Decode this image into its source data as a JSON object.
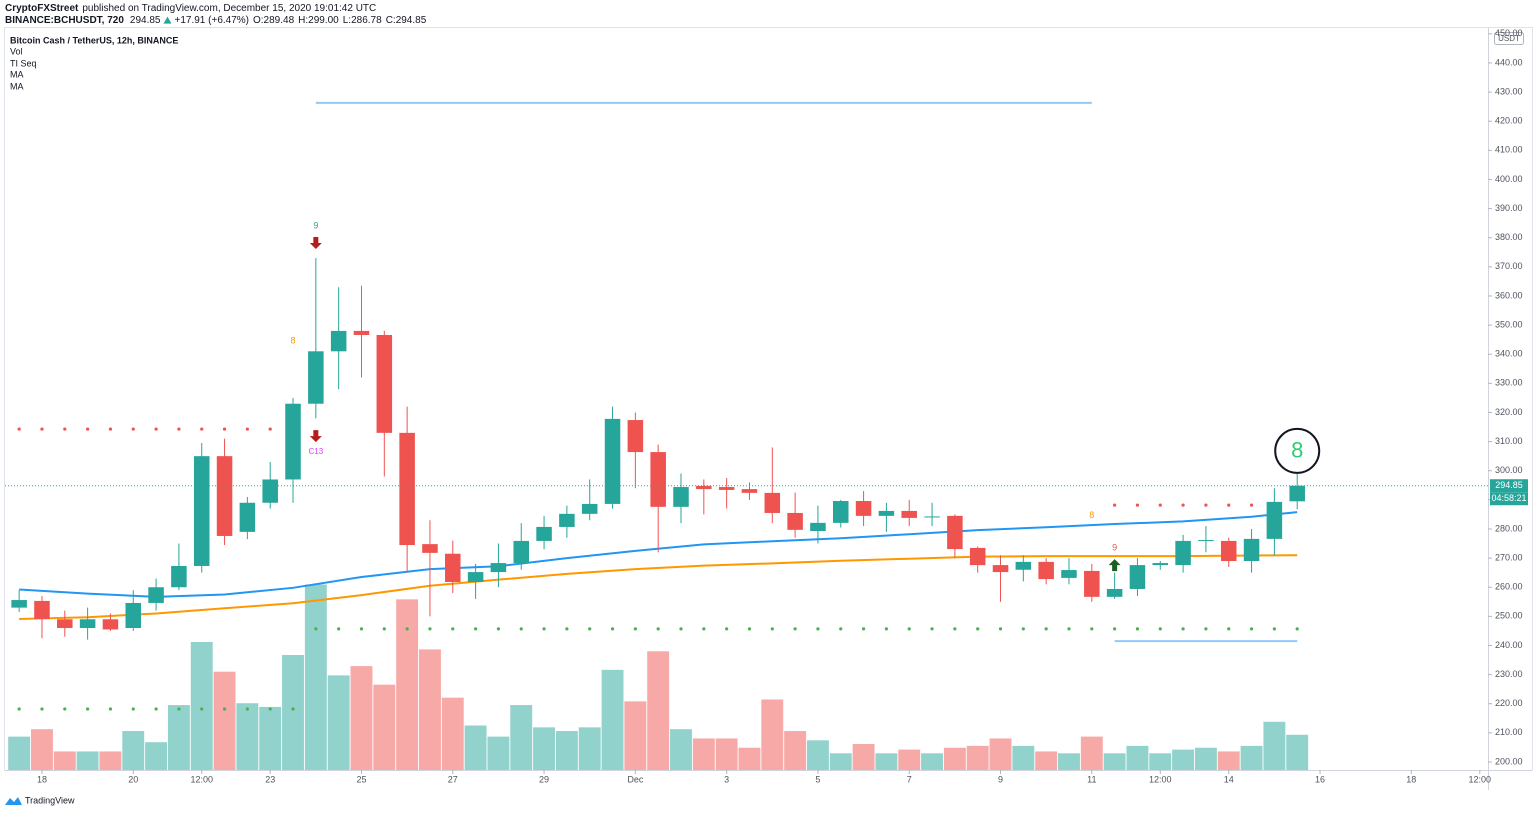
{
  "header": {
    "author": "CryptoFXStreet",
    "published": "published on TradingView.com, December 15, 2020 19:01:42 UTC",
    "symbol": "BINANCE:BCHUSDT, 720",
    "price": "294.85",
    "change": "+17.91 (+6.47%)",
    "ohlc": [
      "O:289.48",
      "H:299.00",
      "L:286.78",
      "C:294.85"
    ]
  },
  "footer": {
    "brand": "TradingView"
  },
  "chart_data": {
    "type": "candlestick",
    "title": "Bitcoin Cash / TetherUS, 12h, BINANCE",
    "legend": [
      "Vol",
      "TI Seq"
    ],
    "y_unit": "USDT",
    "up_color": "#26a69a",
    "down_color": "#ef5350",
    "grid": false,
    "x": [
      17.5,
      18,
      18.5,
      19,
      19.5,
      20,
      20.5,
      21,
      21.5,
      22,
      22.5,
      23,
      23.5,
      24,
      24.5,
      25,
      25.5,
      26,
      26.5,
      27,
      27.5,
      28,
      28.5,
      29,
      29.5,
      30,
      30.5,
      31,
      31.5,
      32,
      32.5,
      33,
      33.5,
      34,
      34.5,
      35,
      35.5,
      36,
      36.5,
      37,
      37.5,
      38,
      38.5,
      39,
      39.5,
      40,
      40.5,
      41,
      41.5,
      42,
      42.5,
      43,
      43.5,
      44,
      44.5,
      45,
      45.5
    ],
    "open": [
      253,
      255.3,
      249,
      246,
      249,
      246,
      254.6,
      260,
      267.3,
      305,
      279,
      289,
      297,
      323,
      341,
      348,
      346.6,
      313,
      274.8,
      271.5,
      261.8,
      265.2,
      268.3,
      275.9,
      280.7,
      285.2,
      288.6,
      317.4,
      306.4,
      287.6,
      294.8,
      294.4,
      293.7,
      292.4,
      285.5,
      279.3,
      282.1,
      289.6,
      284.5,
      286.2,
      284,
      284.5,
      273.5,
      267.6,
      266,
      268.7,
      263.2,
      265.6,
      256.7,
      259.4,
      267.6,
      267.6,
      275.9,
      275.9,
      269,
      276.6,
      289.5
    ],
    "high": [
      259,
      257,
      252,
      253,
      251,
      259,
      263,
      275,
      309.5,
      311,
      291,
      303,
      325,
      373,
      363,
      363.5,
      348,
      322,
      283,
      276,
      268,
      275,
      282,
      284.5,
      288,
      297,
      322,
      320,
      309,
      299,
      297,
      297.5,
      296,
      308,
      292.5,
      288,
      290,
      293,
      289,
      290,
      289,
      285,
      274,
      271,
      271,
      270,
      270,
      268,
      265,
      270,
      269,
      278,
      281,
      277,
      280,
      294,
      299
    ],
    "low": [
      251.5,
      242.5,
      243,
      242,
      245,
      245,
      252,
      259,
      265,
      274.5,
      276.5,
      287,
      289,
      318,
      328,
      332,
      298,
      265,
      250,
      258,
      256,
      260,
      266,
      273,
      277,
      283,
      287,
      294,
      272,
      282,
      285,
      287,
      290,
      282,
      277,
      275,
      280.5,
      281,
      279,
      281,
      281,
      270,
      265,
      255,
      262,
      261,
      261,
      255,
      256,
      257,
      266,
      265,
      272,
      267,
      265,
      271,
      286.78
    ],
    "close": [
      255.6,
      249.1,
      246,
      249,
      245.5,
      254.6,
      260,
      267.3,
      305,
      277.6,
      289,
      297,
      323,
      341,
      348,
      346.6,
      313,
      274.5,
      271.8,
      261.8,
      265.2,
      268.3,
      275.9,
      280.7,
      285.2,
      288.6,
      317.8,
      306.4,
      287.6,
      294.4,
      293.7,
      293.4,
      292.4,
      285.5,
      279.7,
      282.1,
      289.6,
      284.5,
      286.2,
      283.8,
      284.3,
      273.1,
      267.6,
      265.2,
      268.7,
      262.8,
      265.9,
      256.7,
      259.4,
      267.6,
      268.3,
      275.9,
      276.2,
      269,
      276.6,
      289.3,
      294.85
    ],
    "volume": [
      18,
      22,
      10,
      10,
      10,
      21,
      15,
      35,
      69,
      53,
      36,
      34,
      62,
      100,
      51,
      56,
      46,
      92,
      65,
      39,
      24,
      18,
      35,
      23,
      21,
      23,
      54,
      37,
      64,
      22,
      17,
      17,
      12,
      38,
      21,
      16,
      9,
      14,
      9,
      11,
      9,
      12,
      13,
      17,
      13,
      10,
      9,
      18,
      9,
      13,
      9,
      11,
      12,
      10,
      13,
      26,
      19
    ],
    "volume_ylim": [
      0,
      400
    ],
    "xlim": [
      17.19,
      49.68
    ],
    "xticks": [
      18,
      20,
      {
        "value": 21.5,
        "label": "12:00"
      },
      23,
      25,
      27,
      29,
      {
        "value": 31,
        "label": "Dec"
      },
      {
        "value": 33,
        "label": "3"
      },
      {
        "value": 35,
        "label": "5"
      },
      {
        "value": 37,
        "label": "7"
      },
      {
        "value": 39,
        "label": "9"
      },
      {
        "value": 41,
        "label": "11"
      },
      {
        "value": 42.5,
        "label": "12:00"
      },
      {
        "value": 44,
        "label": "14"
      },
      {
        "value": 46,
        "label": "16"
      },
      {
        "value": 48,
        "label": "18"
      },
      {
        "value": 49.5,
        "label": "12:00"
      }
    ],
    "ylim": [
      197.25,
      452
    ],
    "yticks": [
      {
        "value": 200,
        "label": "200.00"
      },
      {
        "value": 210,
        "label": "210.00"
      },
      {
        "value": 220,
        "label": "220.00"
      },
      {
        "value": 230,
        "label": "230.00"
      },
      {
        "value": 240,
        "label": "240.00"
      },
      {
        "value": 250,
        "label": "250.00"
      },
      {
        "value": 260,
        "label": "260.00"
      },
      {
        "value": 270,
        "label": "270.00"
      },
      {
        "value": 280,
        "label": "280.00"
      },
      {
        "value": 290,
        "label": "290.00"
      },
      {
        "value": 300,
        "label": "300.00"
      },
      {
        "value": 310,
        "label": "310.00"
      },
      {
        "value": 320,
        "label": "320.00"
      },
      {
        "value": 330,
        "label": "330.00"
      },
      {
        "value": 340,
        "label": "340.00"
      },
      {
        "value": 350,
        "label": "350.00"
      },
      {
        "value": 360,
        "label": "360.00"
      },
      {
        "value": 370,
        "label": "370.00"
      },
      {
        "value": 380,
        "label": "380.00"
      },
      {
        "value": 390,
        "label": "390.00"
      },
      {
        "value": 400,
        "label": "400.00"
      },
      {
        "value": 410,
        "label": "410.00"
      },
      {
        "value": 420,
        "label": "420.00"
      },
      {
        "value": 430,
        "label": "430.00"
      },
      {
        "value": 440,
        "label": "440.00"
      },
      {
        "value": 450,
        "label": "450.00"
      }
    ],
    "moving_averages": [
      {
        "name": "MA",
        "color": "#2196f3",
        "x": [
          17.5,
          19,
          20.5,
          22,
          23.5,
          25,
          26.5,
          28,
          29.5,
          31,
          32.5,
          34,
          35.5,
          37,
          38.5,
          40,
          41.5,
          43,
          44.5,
          45.5
        ],
        "values": [
          259.2,
          257.8,
          256.7,
          257.5,
          259.8,
          263.5,
          266.2,
          267.2,
          270,
          272.5,
          274.7,
          275.8,
          276.8,
          278.2,
          279.6,
          280.6,
          281.7,
          282.6,
          284.2,
          285.8
        ]
      },
      {
        "name": "MA",
        "color": "#ff9800",
        "x": [
          17.5,
          19,
          20.5,
          22,
          23.5,
          25,
          26.5,
          28,
          29.5,
          31,
          32.5,
          34,
          35.5,
          37,
          38.5,
          40,
          41.5,
          43,
          44.5,
          45.5
        ],
        "values": [
          249.1,
          249.7,
          251,
          252.8,
          254.5,
          257.3,
          260.5,
          262.6,
          264.6,
          266.2,
          267.4,
          268.2,
          269.1,
          269.8,
          270.5,
          270.7,
          270.7,
          270.7,
          270.9,
          271
        ]
      }
    ],
    "levels": [
      {
        "value": 426.3,
        "from": 24,
        "to": 41,
        "color": "#90caf9",
        "style": "solid"
      },
      {
        "value": 241.5,
        "from": 41.5,
        "to": 45.5,
        "color": "#90caf9",
        "style": "solid"
      },
      {
        "value": 314.3,
        "from": 17.5,
        "to": 23,
        "color": "#ef5350",
        "style": "dotted"
      },
      {
        "value": 288.2,
        "from": 41.5,
        "to": 44.5,
        "color": "#ef5350",
        "style": "dotted"
      },
      {
        "value": 245.7,
        "from": 24,
        "to": 45.5,
        "color": "#4caf50",
        "style": "dotted"
      },
      {
        "value": 218.2,
        "from": 17.5,
        "to": 23.5,
        "color": "#4caf50",
        "style": "dotted"
      }
    ],
    "markers": [
      {
        "x": 24,
        "y": 378.2,
        "shape": "arrow-down",
        "color": "#b71c1c"
      },
      {
        "x": 24,
        "y": 311.9,
        "shape": "arrow-down",
        "color": "#b71c1c"
      },
      {
        "x": 41.5,
        "y": 267.6,
        "shape": "arrow-up",
        "color": "#1b5e20"
      }
    ],
    "annotations": [
      {
        "text": "9",
        "x": 24,
        "y": 384,
        "color": "#26a69a"
      },
      {
        "text": "C13",
        "x": 24,
        "y": 306.4,
        "color": "#e040fb"
      },
      {
        "text": "8",
        "x": 23.5,
        "y": 344.5,
        "color": "#ff9800"
      },
      {
        "text": "8",
        "x": 41,
        "y": 284.5,
        "color": "#ff9800"
      },
      {
        "text": "9",
        "x": 41.5,
        "y": 273.5,
        "color": "#ef5350"
      },
      {
        "text": "8",
        "x": 45.5,
        "y": 306.8,
        "color": "#2ecc71",
        "style": "circled"
      }
    ],
    "last_price": 294.85,
    "countdown": "04:58:21"
  }
}
